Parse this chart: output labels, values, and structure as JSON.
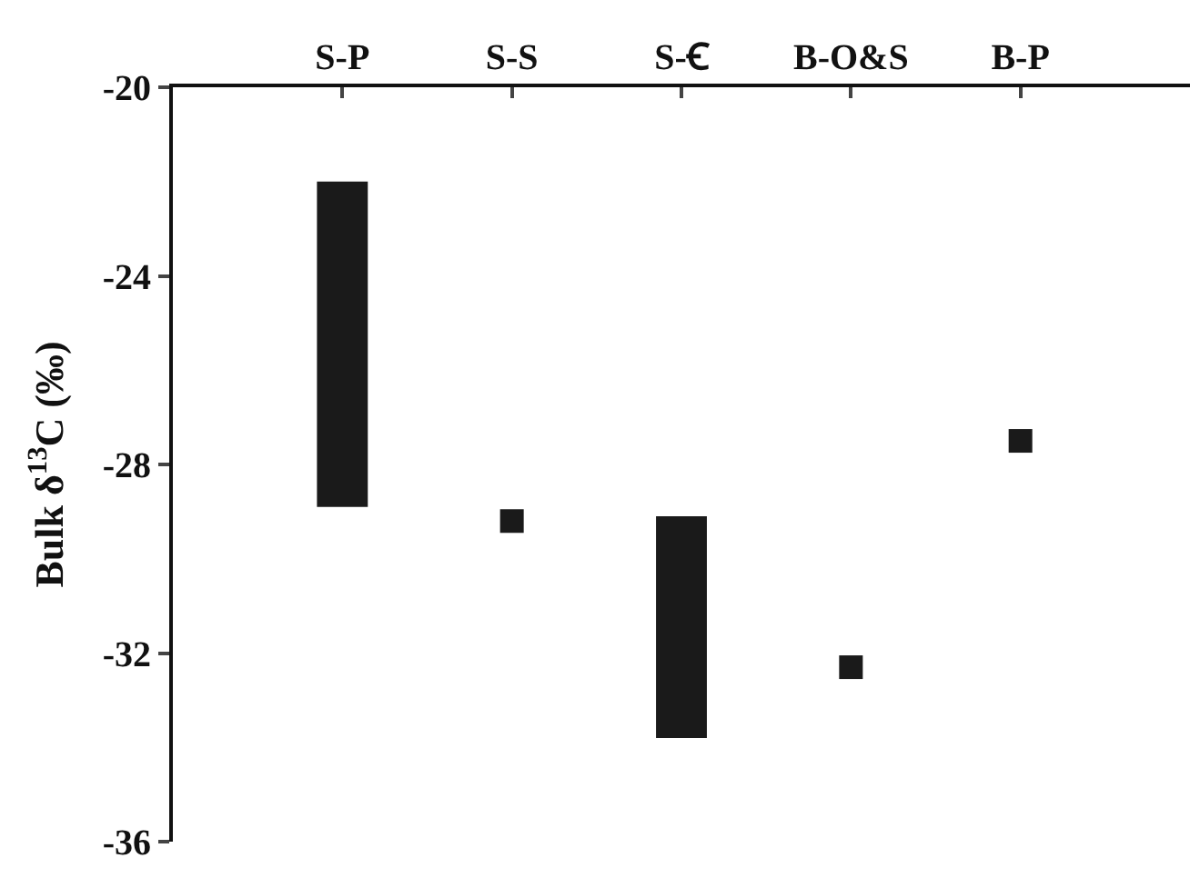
{
  "chart_data": {
    "type": "bar",
    "ylabel": "Bulk δ$^{13}$C (‰)",
    "categories": [
      "S-P",
      "S-S",
      "S-Ꞓ",
      "B-O&S",
      "B-P"
    ],
    "series": [
      {
        "color": "#1a1a1a",
        "values": [
          6.9,
          null,
          4.7,
          null,
          null
        ],
        "base": [
          -28.9,
          null,
          -33.8,
          null,
          null
        ]
      },
      {
        "type": "scatter",
        "color": "#1a1a1a",
        "marker": "square",
        "x": [
          "S-S",
          "B-O&S",
          "B-P"
        ],
        "values": [
          -29.2,
          -32.3,
          -27.5
        ]
      }
    ],
    "ylim": [
      -36,
      -20
    ],
    "yticks": [
      -36,
      -32,
      -28,
      -24,
      -20
    ]
  }
}
